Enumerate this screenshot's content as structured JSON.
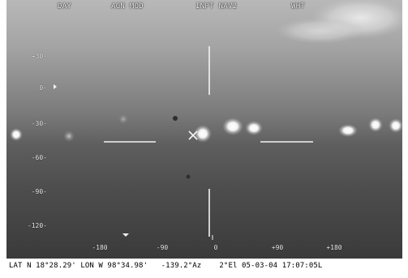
{
  "osd": {
    "mode": "DAY",
    "alignment": "AGN MOD",
    "input": "INPT NAV2",
    "wht": "WHT"
  },
  "elevation_scale": [
    "+30-",
    "0-",
    "-30-",
    "-60-",
    "-90-",
    "-120-"
  ],
  "azimuth_scale": [
    "-180",
    "-90",
    "0",
    "+90",
    "+180"
  ],
  "status": {
    "latitude": "LAT N 18°28.29'",
    "longitude": "LON W  98°34.98'",
    "heading": "-139.2°Az",
    "elevation": "2°El",
    "date": "05-03-04",
    "time": "17:07:05L"
  },
  "colors": {
    "sky_top": "#c4c4c4",
    "sky_mid": "#8e8e8e",
    "ground": "#404040",
    "overlay": "#f4f4f4",
    "frame": "#ffffff"
  }
}
